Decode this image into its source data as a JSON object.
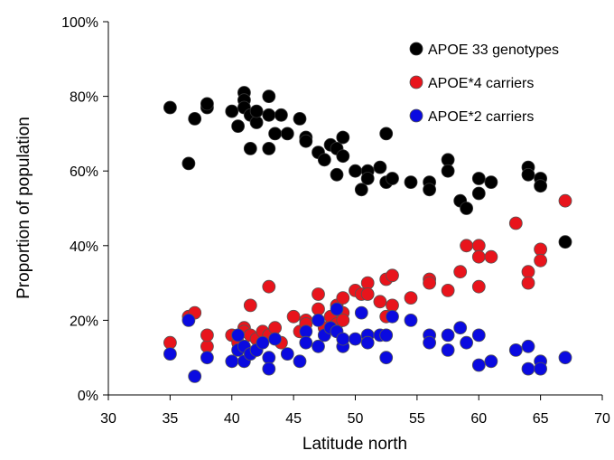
{
  "chart_data": {
    "type": "scatter",
    "title": "",
    "xlabel": "Latitude north",
    "ylabel": "Proportion of population",
    "xlim": [
      30,
      70
    ],
    "ylim": [
      0,
      100
    ],
    "x_ticks": [
      "30",
      "35",
      "40",
      "45",
      "50",
      "55",
      "60",
      "65",
      "70"
    ],
    "y_ticks": [
      "0%",
      "20%",
      "40%",
      "60%",
      "80%",
      "100%"
    ],
    "grid": false,
    "legend_position": "top-right",
    "series": [
      {
        "name": "APOE 33 genotypes",
        "color": "#000000",
        "points": [
          [
            35,
            77
          ],
          [
            36.5,
            62
          ],
          [
            37,
            74
          ],
          [
            38,
            77
          ],
          [
            38,
            78
          ],
          [
            40,
            76
          ],
          [
            40.5,
            72
          ],
          [
            41,
            81
          ],
          [
            41,
            79
          ],
          [
            41,
            77
          ],
          [
            41.5,
            75
          ],
          [
            41.5,
            66
          ],
          [
            42,
            73
          ],
          [
            42,
            76
          ],
          [
            43,
            80
          ],
          [
            43,
            75
          ],
          [
            43,
            66
          ],
          [
            43.5,
            70
          ],
          [
            44,
            75
          ],
          [
            44.5,
            70
          ],
          [
            45.5,
            74
          ],
          [
            46,
            69
          ],
          [
            46,
            68
          ],
          [
            47,
            65
          ],
          [
            47.5,
            63
          ],
          [
            48,
            67
          ],
          [
            48.5,
            66
          ],
          [
            48.5,
            59
          ],
          [
            49,
            69
          ],
          [
            49,
            64
          ],
          [
            50,
            60
          ],
          [
            50.5,
            55
          ],
          [
            51,
            60
          ],
          [
            51,
            58
          ],
          [
            52,
            61
          ],
          [
            52.5,
            70
          ],
          [
            52.5,
            57
          ],
          [
            53,
            58
          ],
          [
            54.5,
            57
          ],
          [
            56,
            57
          ],
          [
            56,
            55
          ],
          [
            57.5,
            63
          ],
          [
            57.5,
            60
          ],
          [
            58.5,
            52
          ],
          [
            59,
            50
          ],
          [
            60,
            58
          ],
          [
            60,
            54
          ],
          [
            61,
            57
          ],
          [
            64,
            61
          ],
          [
            64,
            59
          ],
          [
            65,
            58
          ],
          [
            65,
            56
          ],
          [
            67,
            41
          ]
        ]
      },
      {
        "name": "APOE*4 carriers",
        "color": "#e8141c",
        "points": [
          [
            35,
            14
          ],
          [
            36.5,
            21
          ],
          [
            37,
            22
          ],
          [
            38,
            13
          ],
          [
            38,
            16
          ],
          [
            40,
            16
          ],
          [
            40.5,
            14
          ],
          [
            41,
            18
          ],
          [
            41,
            17
          ],
          [
            41.5,
            24
          ],
          [
            41.5,
            16
          ],
          [
            42,
            15
          ],
          [
            42,
            12
          ],
          [
            42.5,
            17
          ],
          [
            43,
            29
          ],
          [
            43,
            16
          ],
          [
            43.5,
            18
          ],
          [
            44,
            14
          ],
          [
            45,
            21
          ],
          [
            45.5,
            17
          ],
          [
            46,
            20
          ],
          [
            46,
            19
          ],
          [
            47,
            27
          ],
          [
            47,
            23
          ],
          [
            47.5,
            18
          ],
          [
            48,
            21
          ],
          [
            48.5,
            24
          ],
          [
            48.5,
            19
          ],
          [
            49,
            26
          ],
          [
            49,
            22
          ],
          [
            49,
            20
          ],
          [
            50,
            28
          ],
          [
            50.5,
            27
          ],
          [
            51,
            30
          ],
          [
            51,
            27
          ],
          [
            52,
            25
          ],
          [
            52.5,
            31
          ],
          [
            52.5,
            21
          ],
          [
            53,
            32
          ],
          [
            53,
            24
          ],
          [
            54.5,
            26
          ],
          [
            56,
            31
          ],
          [
            56,
            30
          ],
          [
            57.5,
            28
          ],
          [
            58.5,
            33
          ],
          [
            59,
            40
          ],
          [
            60,
            40
          ],
          [
            60,
            37
          ],
          [
            60,
            29
          ],
          [
            61,
            37
          ],
          [
            63,
            46
          ],
          [
            64,
            33
          ],
          [
            64,
            30
          ],
          [
            65,
            39
          ],
          [
            65,
            36
          ],
          [
            67,
            52
          ]
        ]
      },
      {
        "name": "APOE*2 carriers",
        "color": "#0a0ae0",
        "points": [
          [
            35,
            11
          ],
          [
            36.5,
            20
          ],
          [
            37,
            5
          ],
          [
            38,
            10
          ],
          [
            40,
            9
          ],
          [
            40.5,
            16
          ],
          [
            40.5,
            12
          ],
          [
            41,
            13
          ],
          [
            41,
            9
          ],
          [
            41.5,
            11
          ],
          [
            42,
            12
          ],
          [
            42.5,
            14
          ],
          [
            43,
            10
          ],
          [
            43,
            7
          ],
          [
            43.5,
            15
          ],
          [
            44.5,
            11
          ],
          [
            45.5,
            9
          ],
          [
            46,
            17
          ],
          [
            46,
            14
          ],
          [
            47,
            20
          ],
          [
            47,
            13
          ],
          [
            47.5,
            16
          ],
          [
            48,
            18
          ],
          [
            48.5,
            23
          ],
          [
            48.5,
            17
          ],
          [
            49,
            13
          ],
          [
            49,
            15
          ],
          [
            50,
            15
          ],
          [
            50.5,
            22
          ],
          [
            51,
            16
          ],
          [
            51,
            14
          ],
          [
            52,
            16
          ],
          [
            52.5,
            16
          ],
          [
            52.5,
            10
          ],
          [
            53,
            21
          ],
          [
            54.5,
            20
          ],
          [
            56,
            16
          ],
          [
            56,
            14
          ],
          [
            57.5,
            16
          ],
          [
            57.5,
            12
          ],
          [
            58.5,
            18
          ],
          [
            59,
            14
          ],
          [
            60,
            16
          ],
          [
            60,
            8
          ],
          [
            61,
            9
          ],
          [
            63,
            12
          ],
          [
            64,
            13
          ],
          [
            64,
            7
          ],
          [
            65,
            9
          ],
          [
            65,
            7
          ],
          [
            67,
            10
          ]
        ]
      }
    ]
  }
}
